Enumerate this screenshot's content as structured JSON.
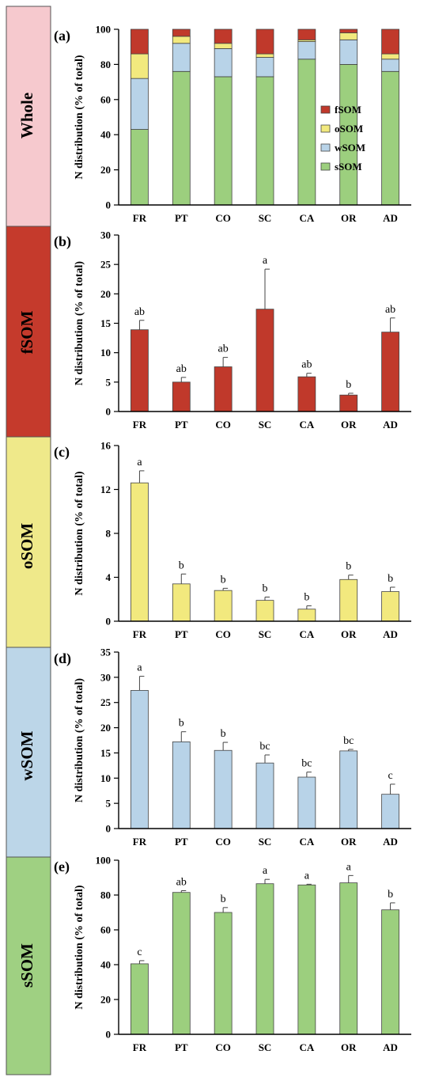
{
  "categories": [
    "FR",
    "PT",
    "CO",
    "SC",
    "CA",
    "OR",
    "AD"
  ],
  "side_labels": [
    "Whole",
    "fSOM",
    "oSOM",
    "wSOM",
    "sSOM"
  ],
  "colors": {
    "fSOM": "#c0392b",
    "oSOM": "#f2e97e",
    "wSOM": "#b8d3e8",
    "sSOM": "#9ccf7e",
    "Whole_band": "#f6c9ce",
    "fSOM_band": "#c53a2c",
    "oSOM_band": "#efe98a",
    "wSOM_band": "#bcd6e8",
    "sSOM_band": "#9fd082"
  },
  "chart_data": [
    {
      "panel": "(a)",
      "type": "bar",
      "stacked": true,
      "ylabel": "N distribution (% of total)",
      "ylim": [
        0,
        100
      ],
      "yticks": [
        0,
        20,
        40,
        60,
        80,
        100
      ],
      "legend": [
        "fSOM",
        "oSOM",
        "wSOM",
        "sSOM"
      ],
      "legend_placement": "right",
      "series": [
        {
          "name": "sSOM",
          "values": [
            43,
            76,
            73,
            73,
            83,
            80,
            76
          ]
        },
        {
          "name": "wSOM",
          "values": [
            29,
            16,
            16,
            11,
            10,
            14,
            7
          ]
        },
        {
          "name": "oSOM",
          "values": [
            14,
            4,
            3,
            2,
            1,
            4,
            3
          ]
        },
        {
          "name": "fSOM",
          "values": [
            14,
            4,
            8,
            14,
            6,
            2,
            14
          ]
        }
      ]
    },
    {
      "panel": "(b)",
      "type": "bar",
      "series_name": "fSOM",
      "ylabel": "N distribution (% of total)",
      "ylim": [
        0,
        30
      ],
      "yticks": [
        0,
        5,
        10,
        15,
        20,
        25,
        30
      ],
      "values": [
        13.9,
        5.0,
        7.6,
        17.4,
        5.9,
        2.8,
        13.5
      ],
      "errors": [
        1.6,
        0.8,
        1.6,
        6.8,
        0.6,
        0.3,
        2.4
      ],
      "letters": [
        "ab",
        "ab",
        "ab",
        "a",
        "ab",
        "b",
        "ab"
      ]
    },
    {
      "panel": "(c)",
      "type": "bar",
      "series_name": "oSOM",
      "ylabel": "N distribution (% of total)",
      "ylim": [
        0,
        16
      ],
      "yticks": [
        0,
        4,
        8,
        12,
        16
      ],
      "values": [
        12.6,
        3.4,
        2.8,
        1.9,
        1.1,
        3.8,
        2.7
      ],
      "errors": [
        1.1,
        0.9,
        0.2,
        0.3,
        0.3,
        0.4,
        0.4
      ],
      "letters": [
        "a",
        "b",
        "b",
        "b",
        "b",
        "b",
        "b"
      ]
    },
    {
      "panel": "(d)",
      "type": "bar",
      "series_name": "wSOM",
      "ylabel": "N distribution (% of total)",
      "ylim": [
        0,
        35
      ],
      "yticks": [
        0,
        5,
        10,
        15,
        20,
        25,
        30,
        35
      ],
      "values": [
        27.4,
        17.2,
        15.5,
        13.0,
        10.2,
        15.4,
        6.8
      ],
      "errors": [
        2.8,
        2.0,
        1.6,
        1.6,
        1.0,
        0.3,
        2.0
      ],
      "letters": [
        "a",
        "b",
        "b",
        "bc",
        "bc",
        "bc",
        "c"
      ]
    },
    {
      "panel": "(e)",
      "type": "bar",
      "series_name": "sSOM",
      "ylabel": "N distribution (% of total)",
      "ylim": [
        0,
        100
      ],
      "yticks": [
        0,
        20,
        40,
        60,
        80,
        100
      ],
      "values": [
        40.5,
        81.5,
        70.0,
        86.5,
        85.8,
        87.0,
        71.5
      ],
      "errors": [
        1.8,
        1.0,
        2.8,
        2.5,
        0.4,
        4.2,
        4.0
      ],
      "letters": [
        "c",
        "ab",
        "b",
        "a",
        "a",
        "a",
        "b"
      ]
    }
  ]
}
